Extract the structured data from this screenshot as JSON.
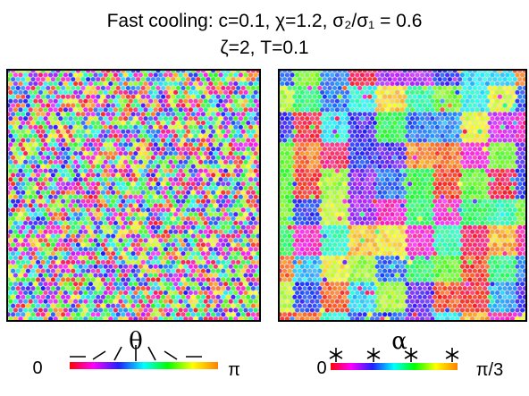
{
  "title_line1": "Fast cooling: c=0.1, χ=1.2, σ₂/σ₁ = 0.6",
  "title_line2": "ζ=2, T=0.1",
  "panels": [
    {
      "symbol": "θ",
      "min_label": "0",
      "max_label": "π"
    },
    {
      "symbol": "α",
      "min_label": "0",
      "max_label": "π/3"
    }
  ]
}
